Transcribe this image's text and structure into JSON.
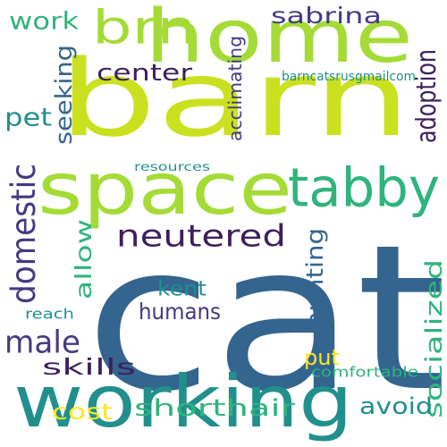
{
  "palette": {
    "dark_purple": "#3e1f5c",
    "indigo": "#433a83",
    "slate_blue": "#33658f",
    "teal": "#21908d",
    "green": "#2fb47c",
    "lime": "#a5db36",
    "yellow_green": "#cbe11f",
    "yellow": "#fde725"
  },
  "words": [
    {
      "text": "cat",
      "color": "#33658f",
      "vertical": false
    },
    {
      "text": "barn",
      "color": "#cbe11f",
      "vertical": false
    },
    {
      "text": "home",
      "color": "#a5db36",
      "vertical": false
    },
    {
      "text": "space",
      "color": "#a5db36",
      "vertical": false
    },
    {
      "text": "working",
      "color": "#21908d",
      "vertical": false
    },
    {
      "text": "brn",
      "color": "#a5db36",
      "vertical": false
    },
    {
      "text": "tabby",
      "color": "#2fb47c",
      "vertical": false
    },
    {
      "text": "domestic",
      "color": "#433a83",
      "vertical": true
    },
    {
      "text": "neutered",
      "color": "#3e1f5c",
      "vertical": false
    },
    {
      "text": "male",
      "color": "#433a83",
      "vertical": false
    },
    {
      "text": "adoption",
      "color": "#3e1f5c",
      "vertical": true
    },
    {
      "text": "seeking",
      "color": "#33658f",
      "vertical": true
    },
    {
      "text": "sabrina",
      "color": "#433a83",
      "vertical": false
    },
    {
      "text": "work",
      "color": "#2fb47c",
      "vertical": false
    },
    {
      "text": "center",
      "color": "#3e1f5c",
      "vertical": false
    },
    {
      "text": "pet",
      "color": "#21908d",
      "vertical": false
    },
    {
      "text": "allow",
      "color": "#2fb47c",
      "vertical": true
    },
    {
      "text": "kent",
      "color": "#21908d",
      "vertical": false
    },
    {
      "text": "humans",
      "color": "#433a83",
      "vertical": false
    },
    {
      "text": "hunting",
      "color": "#33658f",
      "vertical": true
    },
    {
      "text": "socialized",
      "color": "#2fb47c",
      "vertical": true
    },
    {
      "text": "put",
      "color": "#fde725",
      "vertical": false
    },
    {
      "text": "skills",
      "color": "#3e1f5c",
      "vertical": false
    },
    {
      "text": "avoid",
      "color": "#21908d",
      "vertical": false
    },
    {
      "text": "cost",
      "color": "#fde725",
      "vertical": false
    },
    {
      "text": "shorthair",
      "color": "#2fb47c",
      "vertical": false
    },
    {
      "text": "acclimating",
      "color": "#433a83",
      "vertical": true
    },
    {
      "text": "barncatsrusgmailcom",
      "color": "#21908d",
      "vertical": false
    },
    {
      "text": "resources",
      "color": "#21908d",
      "vertical": false
    },
    {
      "text": "reach",
      "color": "#21908d",
      "vertical": false
    },
    {
      "text": "comfortable",
      "color": "#2fb47c",
      "vertical": false
    }
  ]
}
